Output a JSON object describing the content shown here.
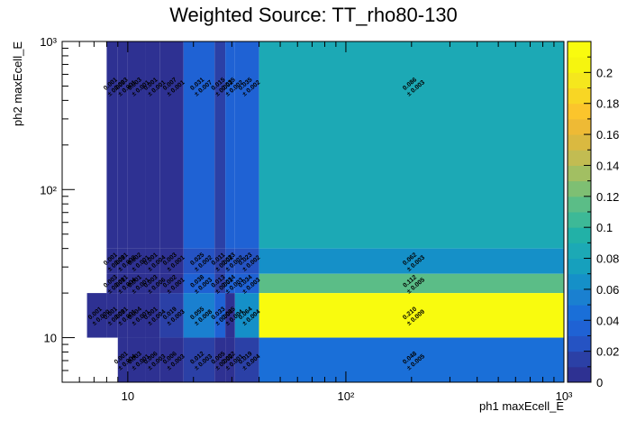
{
  "chart_data": {
    "type": "heatmap",
    "title": "Weighted Source: TT_rho80-130",
    "xlabel": "ph1 maxEcell_E",
    "ylabel": "ph2 maxEcell_E",
    "x_scale": "log",
    "y_scale": "log",
    "xlim": [
      5,
      1000
    ],
    "ylim": [
      5,
      1000
    ],
    "x_ticks": [
      {
        "value": 10,
        "label": "10"
      },
      {
        "value": 100,
        "label": "10²"
      },
      {
        "value": 1000,
        "label": "10³"
      }
    ],
    "y_ticks": [
      {
        "value": 10,
        "label": "10"
      },
      {
        "value": 100,
        "label": "10²"
      },
      {
        "value": 1000,
        "label": "10³"
      }
    ],
    "x_bin_edges": [
      5,
      6.5,
      8,
      9,
      10,
      12,
      14,
      18,
      25,
      28,
      31,
      40,
      1000
    ],
    "y_bin_edges": [
      5,
      10,
      20,
      27,
      40,
      1000
    ],
    "colorbar": {
      "min": 0,
      "max": 0.22,
      "ticks": [
        "0",
        "0.02",
        "0.04",
        "0.06",
        "0.08",
        "0.1",
        "0.12",
        "0.14",
        "0.16",
        "0.18",
        "0.2"
      ],
      "colors": [
        "#2e3192",
        "#2b40a6",
        "#2553c3",
        "#1f62d4",
        "#1a6fd8",
        "#1a80d0",
        "#1590c8",
        "#16a0bd",
        "#1ca9b5",
        "#22b1a7",
        "#3db997",
        "#5bbd87",
        "#7ebf73",
        "#a2bf62",
        "#c2bc52",
        "#dab940",
        "#eeba35",
        "#fbc52c",
        "#f8d624",
        "#f5e71d",
        "#f6f50f",
        "#f9fb0e"
      ]
    },
    "cells": [
      {
        "xbin": 5,
        "ybin": 4,
        "value": 0.001,
        "label": "0.001",
        "error": "± 0.001"
      },
      {
        "xbin": 6,
        "ybin": 4,
        "value": 0.007,
        "label": "0.007",
        "error": "± 0.001"
      },
      {
        "xbin": 3,
        "ybin": 4,
        "value": 0.003,
        "label": "0.003",
        "error": "± 0.001"
      },
      {
        "xbin": 4,
        "ybin": 4,
        "value": 0.003,
        "label": "0.003",
        "error": "± 0.001"
      },
      {
        "xbin": 2,
        "ybin": 4,
        "value": 0.001,
        "label": "0.001",
        "error": "± 0.005"
      },
      {
        "xbin": 7,
        "ybin": 4,
        "value": 0.031,
        "label": "0.031",
        "error": "± 0.007"
      },
      {
        "xbin": 8,
        "ybin": 4,
        "value": 0.015,
        "label": "0.015",
        "error": "± 0.002"
      },
      {
        "xbin": 9,
        "ybin": 4,
        "value": 0.035,
        "label": "0.035",
        "error": "± 0.002"
      },
      {
        "xbin": 10,
        "ybin": 4,
        "value": 0.035,
        "label": "0.035",
        "error": "± 0.002"
      },
      {
        "xbin": 11,
        "ybin": 4,
        "value": 0.086,
        "label": "0.086",
        "error": "± 0.003"
      },
      {
        "xbin": 2,
        "ybin": 3,
        "value": 0.001,
        "label": "0.001",
        "error": "± 0.003"
      },
      {
        "xbin": 3,
        "ybin": 3,
        "value": 0.001,
        "label": "0.001",
        "error": "± 0.002"
      },
      {
        "xbin": 4,
        "ybin": 3,
        "value": 0.002,
        "label": "0.002",
        "error": "± 0.001"
      },
      {
        "xbin": 5,
        "ybin": 3,
        "value": 0.001,
        "label": "0.001",
        "error": "± 0.004"
      },
      {
        "xbin": 6,
        "ybin": 3,
        "value": 0.003,
        "label": "0.003",
        "error": "± 0.001"
      },
      {
        "xbin": 7,
        "ybin": 3,
        "value": 0.025,
        "label": "0.025",
        "error": "± 0.002"
      },
      {
        "xbin": 8,
        "ybin": 3,
        "value": 0.011,
        "label": "0.011",
        "error": "± 0.002"
      },
      {
        "xbin": 9,
        "ybin": 3,
        "value": 0.023,
        "label": "0.023",
        "error": "± 0.002"
      },
      {
        "xbin": 10,
        "ybin": 3,
        "value": 0.023,
        "label": "0.023",
        "error": "± 0.002"
      },
      {
        "xbin": 11,
        "ybin": 3,
        "value": 0.062,
        "label": "0.062",
        "error": "± 0.003"
      },
      {
        "xbin": 2,
        "ybin": 2,
        "value": 0.003,
        "label": "0.003",
        "error": "± 0.001"
      },
      {
        "xbin": 3,
        "ybin": 2,
        "value": 0.001,
        "label": "0.001",
        "error": "± 0.004"
      },
      {
        "xbin": 4,
        "ybin": 2,
        "value": 0.001,
        "label": "0.001",
        "error": "± 0.001"
      },
      {
        "xbin": 5,
        "ybin": 2,
        "value": 0.003,
        "label": "0.003",
        "error": "± 0.006"
      },
      {
        "xbin": 6,
        "ybin": 2,
        "value": 0.002,
        "label": "0.002",
        "error": "± 0.001"
      },
      {
        "xbin": 7,
        "ybin": 2,
        "value": 0.038,
        "label": "0.038",
        "error": "± 0.003"
      },
      {
        "xbin": 8,
        "ybin": 2,
        "value": 0.013,
        "label": "0.013",
        "error": "± 0.001"
      },
      {
        "xbin": 9,
        "ybin": 2,
        "value": 0.034,
        "label": "0.034",
        "error": "± 0.003"
      },
      {
        "xbin": 10,
        "ybin": 2,
        "value": 0.034,
        "label": "0.034",
        "error": "± 0.003"
      },
      {
        "xbin": 11,
        "ybin": 2,
        "value": 0.112,
        "label": "0.112",
        "error": "± 0.005"
      },
      {
        "xbin": 1,
        "ybin": 1,
        "value": 0.001,
        "label": "0.001",
        "error": "± 0.000"
      },
      {
        "xbin": 2,
        "ybin": 1,
        "value": 0.001,
        "label": "0.001",
        "error": "± 0.003"
      },
      {
        "xbin": 3,
        "ybin": 1,
        "value": 0.001,
        "label": "0.001",
        "error": "± 0.001"
      },
      {
        "xbin": 4,
        "ybin": 1,
        "value": 0.004,
        "label": "0.004",
        "error": "± 0.001"
      },
      {
        "xbin": 5,
        "ybin": 1,
        "value": 0.001,
        "label": "0.001",
        "error": "± 0.004"
      },
      {
        "xbin": 6,
        "ybin": 1,
        "value": 0.019,
        "label": "0.019",
        "error": "± 0.003"
      },
      {
        "xbin": 7,
        "ybin": 1,
        "value": 0.055,
        "label": "0.055",
        "error": "± 0.008"
      },
      {
        "xbin": 8,
        "ybin": 1,
        "value": 0.033,
        "label": "0.033",
        "error": "± 0.004"
      },
      {
        "xbin": 9,
        "ybin": 1,
        "value": 0.005,
        "label": "0.005",
        "error": "± 0.004"
      },
      {
        "xbin": 10,
        "ybin": 1,
        "value": 0.064,
        "label": "0.064",
        "error": "± 0.004"
      },
      {
        "xbin": 11,
        "ybin": 1,
        "value": 0.21,
        "label": "0.210",
        "error": "± 0.009"
      },
      {
        "xbin": 3,
        "ybin": 0,
        "value": 0.001,
        "label": "0.001",
        "error": "± 0.004"
      },
      {
        "xbin": 4,
        "ybin": 0,
        "value": 0.003,
        "label": "0.003",
        "error": "± 0.001"
      },
      {
        "xbin": 5,
        "ybin": 0,
        "value": 0.006,
        "label": "0.006",
        "error": "± 0.003"
      },
      {
        "xbin": 6,
        "ybin": 0,
        "value": 0.006,
        "label": "0.006",
        "error": "± 0.003"
      },
      {
        "xbin": 7,
        "ybin": 0,
        "value": 0.012,
        "label": "0.012",
        "error": "± 0.003"
      },
      {
        "xbin": 8,
        "ybin": 0,
        "value": 0.005,
        "label": "0.005",
        "error": "± 0.002"
      },
      {
        "xbin": 9,
        "ybin": 0,
        "value": 0.002,
        "label": "0.002",
        "error": "± 0.001"
      },
      {
        "xbin": 10,
        "ybin": 0,
        "value": 0.019,
        "label": "0.019",
        "error": "± 0.004"
      },
      {
        "xbin": 11,
        "ybin": 0,
        "value": 0.048,
        "label": "0.048",
        "error": "± 0.005"
      }
    ]
  }
}
